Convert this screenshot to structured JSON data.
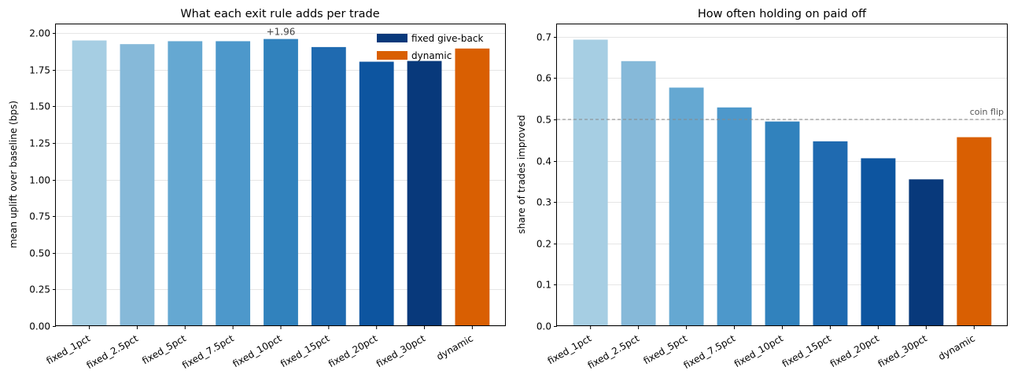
{
  "chart_data": [
    {
      "type": "bar",
      "title": "What each exit rule adds per trade",
      "xlabel": "",
      "ylabel": "mean uplift over baseline (bps)",
      "categories": [
        "fixed_1pct",
        "fixed_2.5pct",
        "fixed_5pct",
        "fixed_7.5pct",
        "fixed_10pct",
        "fixed_15pct",
        "fixed_20pct",
        "fixed_30pct",
        "dynamic"
      ],
      "values": [
        1.95,
        1.925,
        1.945,
        1.945,
        1.96,
        1.905,
        1.805,
        1.81,
        1.895
      ],
      "ylim": [
        0,
        2.06
      ],
      "yticks": [
        "0.00",
        "0.25",
        "0.50",
        "0.75",
        "1.00",
        "1.25",
        "1.50",
        "1.75",
        "2.00"
      ],
      "grid": "horizontal",
      "colors": [
        "#a6cee3",
        "#86b9d9",
        "#65a8d2",
        "#4d98cb",
        "#3182bd",
        "#1f6ab0",
        "#0d55a0",
        "#08397b",
        "#d95f02"
      ],
      "annotation": {
        "text": "+1.96",
        "category": "fixed_10pct"
      },
      "legend": {
        "placement": "top-right",
        "entries": [
          {
            "label": "fixed give-back",
            "color": "#08397b"
          },
          {
            "label": "dynamic",
            "color": "#d95f02"
          }
        ]
      }
    },
    {
      "type": "bar",
      "title": "How often holding on paid off",
      "xlabel": "",
      "ylabel": "share of trades improved",
      "categories": [
        "fixed_1pct",
        "fixed_2.5pct",
        "fixed_5pct",
        "fixed_7.5pct",
        "fixed_10pct",
        "fixed_15pct",
        "fixed_20pct",
        "fixed_30pct",
        "dynamic"
      ],
      "values": [
        0.693,
        0.641,
        0.577,
        0.529,
        0.495,
        0.447,
        0.406,
        0.355,
        0.457
      ],
      "ylim": [
        0,
        0.73
      ],
      "yticks": [
        "0.0",
        "0.1",
        "0.2",
        "0.3",
        "0.4",
        "0.5",
        "0.6",
        "0.7"
      ],
      "grid": "horizontal",
      "colors": [
        "#a6cee3",
        "#86b9d9",
        "#65a8d2",
        "#4d98cb",
        "#3182bd",
        "#1f6ab0",
        "#0d55a0",
        "#08397b",
        "#d95f02"
      ],
      "reference_line": {
        "value": 0.5,
        "label": "coin flip",
        "color": "#888888"
      }
    }
  ]
}
